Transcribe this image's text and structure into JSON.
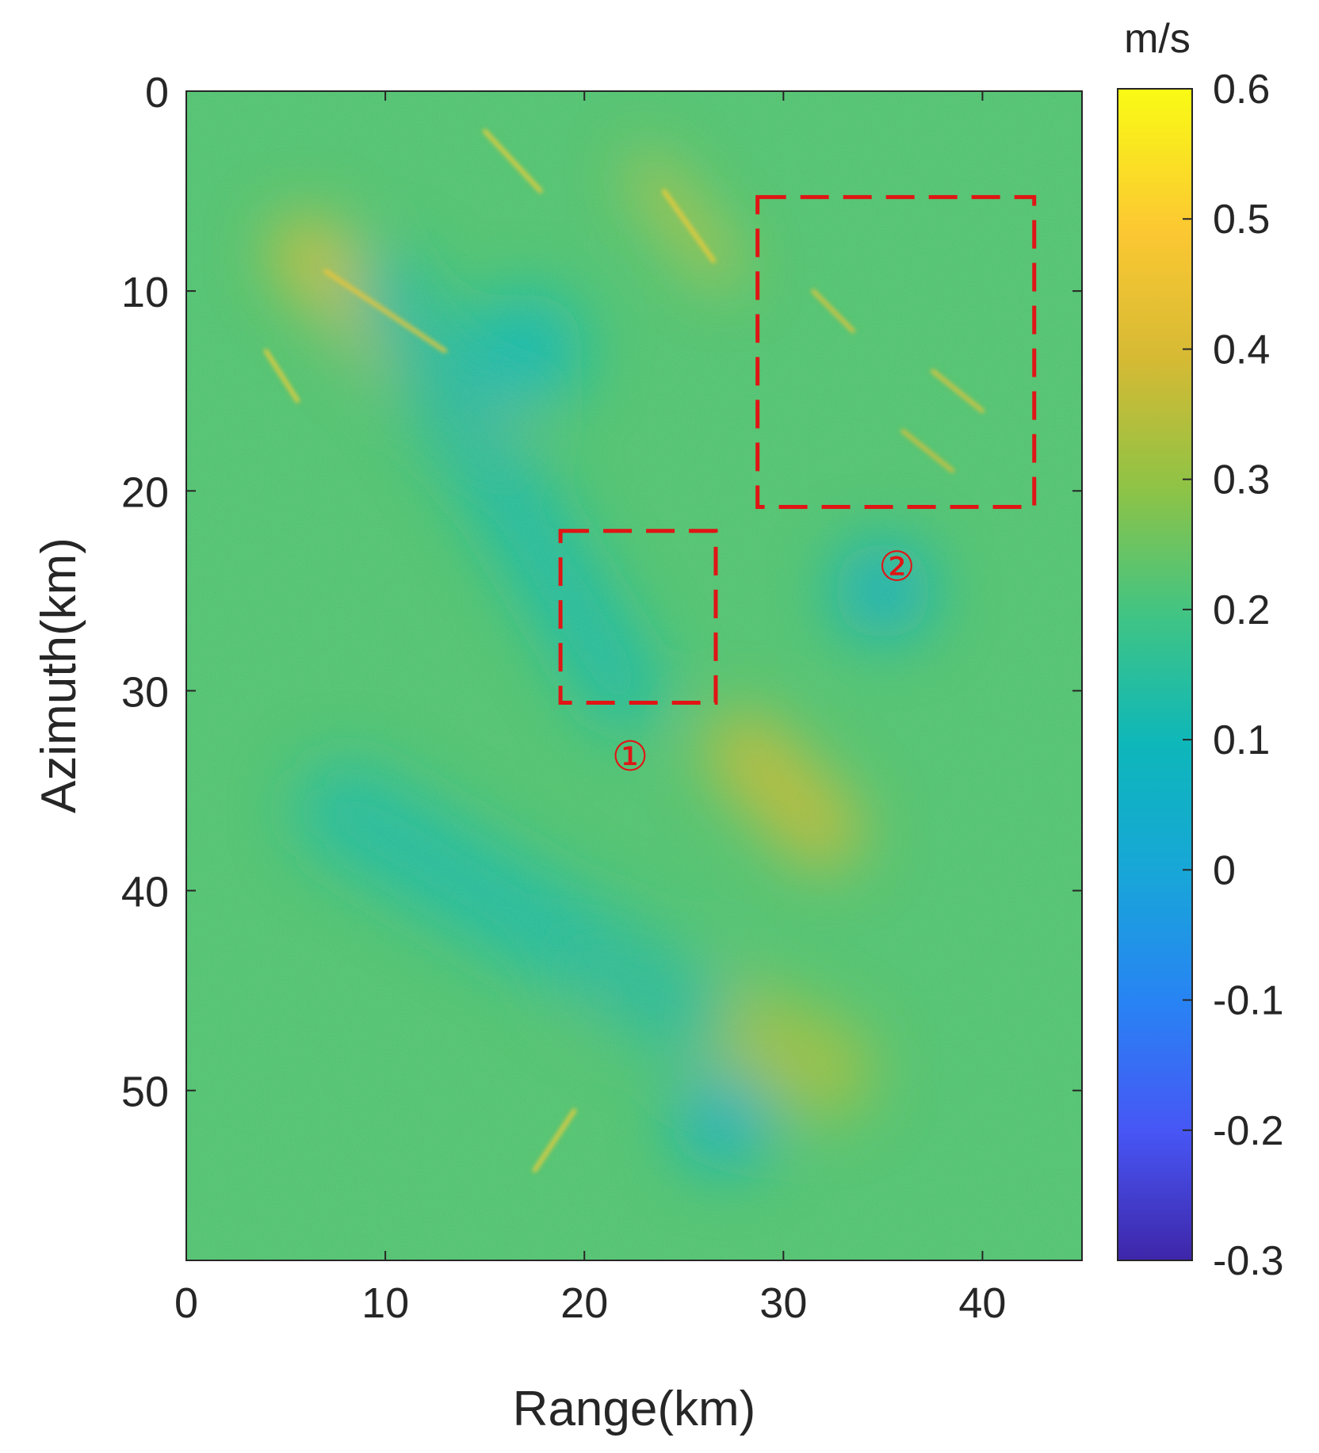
{
  "chart_data": {
    "type": "heatmap",
    "xlabel": "Range(km)",
    "ylabel": "Azimuth(km)",
    "xlim": [
      0,
      45
    ],
    "ylim": [
      58.5,
      0
    ],
    "x_ticks": [
      "0",
      "10",
      "20",
      "30",
      "40"
    ],
    "y_ticks": [
      "0",
      "10",
      "20",
      "30",
      "40",
      "50"
    ],
    "x_tick_values": [
      0,
      10,
      20,
      30,
      40
    ],
    "y_tick_values": [
      0,
      10,
      20,
      30,
      40,
      50
    ],
    "colorbar": {
      "unit": "m/s",
      "min": -0.3,
      "max": 0.6,
      "ticks": [
        "0.6",
        "0.5",
        "0.4",
        "0.3",
        "0.2",
        "0.1",
        "0",
        "-0.1",
        "-0.2",
        "-0.3"
      ],
      "tick_values": [
        0.6,
        0.5,
        0.4,
        0.3,
        0.2,
        0.1,
        0,
        -0.1,
        -0.2,
        -0.3
      ],
      "colormap": "parula"
    },
    "field_description": "velocity field dominated by values around 0.1–0.3 m/s with diagonal bright streaks up to ~0.5 m/s",
    "features": [
      {
        "kind": "band",
        "x0": 6,
        "y0": 8,
        "x1": 15,
        "y1": 17,
        "value": 0.42,
        "width": 3.5
      },
      {
        "kind": "band",
        "x0": 23,
        "y0": 4,
        "x1": 27,
        "y1": 9,
        "value": 0.45,
        "width": 1.5
      },
      {
        "kind": "band",
        "x0": 28,
        "y0": 33,
        "x1": 32,
        "y1": 37,
        "value": 0.38,
        "width": 4
      },
      {
        "kind": "band",
        "x0": 21,
        "y0": 44,
        "x1": 32,
        "y1": 49,
        "value": 0.33,
        "width": 5
      },
      {
        "kind": "band",
        "x0": 10,
        "y0": 10,
        "x1": 22,
        "y1": 30,
        "value": 0.12,
        "width": 4
      },
      {
        "kind": "band",
        "x0": 8,
        "y0": 36,
        "x1": 25,
        "y1": 46,
        "value": 0.13,
        "width": 5
      },
      {
        "kind": "blob",
        "x": 35,
        "y": 25,
        "value": 0.05,
        "r": 2.5
      },
      {
        "kind": "blob",
        "x": 27,
        "y": 51.5,
        "value": 0.06,
        "r": 2.5
      },
      {
        "kind": "blob",
        "x": 17,
        "y": 13,
        "value": 0.1,
        "r": 3
      },
      {
        "kind": "streak",
        "x0": 17.5,
        "y0": 54,
        "x1": 19.5,
        "y1": 51,
        "value": 0.5
      },
      {
        "kind": "streak",
        "x0": 4.0,
        "y0": 13,
        "x1": 5.6,
        "y1": 15.5,
        "value": 0.5
      },
      {
        "kind": "streak",
        "x0": 15.0,
        "y0": 2,
        "x1": 17.8,
        "y1": 5,
        "value": 0.5
      },
      {
        "kind": "streak",
        "x0": 24.0,
        "y0": 5,
        "x1": 26.5,
        "y1": 8.5,
        "value": 0.5
      },
      {
        "kind": "streak",
        "x0": 31.5,
        "y0": 10,
        "x1": 33.5,
        "y1": 12,
        "value": 0.45
      },
      {
        "kind": "streak",
        "x0": 37.5,
        "y0": 14,
        "x1": 40,
        "y1": 16,
        "value": 0.45
      },
      {
        "kind": "streak",
        "x0": 36,
        "y0": 17,
        "x1": 38.5,
        "y1": 19,
        "value": 0.42
      },
      {
        "kind": "streak",
        "x0": 7,
        "y0": 9,
        "x1": 13,
        "y1": 13,
        "value": 0.48
      }
    ],
    "rois": [
      {
        "label": "①",
        "x0": 18.8,
        "y0": 22.0,
        "x1": 26.6,
        "y1": 30.6,
        "label_x": 22.3,
        "label_y": 33.2,
        "color": "#e01515"
      },
      {
        "label": "②",
        "x0": 28.7,
        "y0": 5.3,
        "x1": 42.6,
        "y1": 20.8,
        "label_x": 35.7,
        "label_y": 23.7,
        "color": "#e01515"
      }
    ]
  }
}
